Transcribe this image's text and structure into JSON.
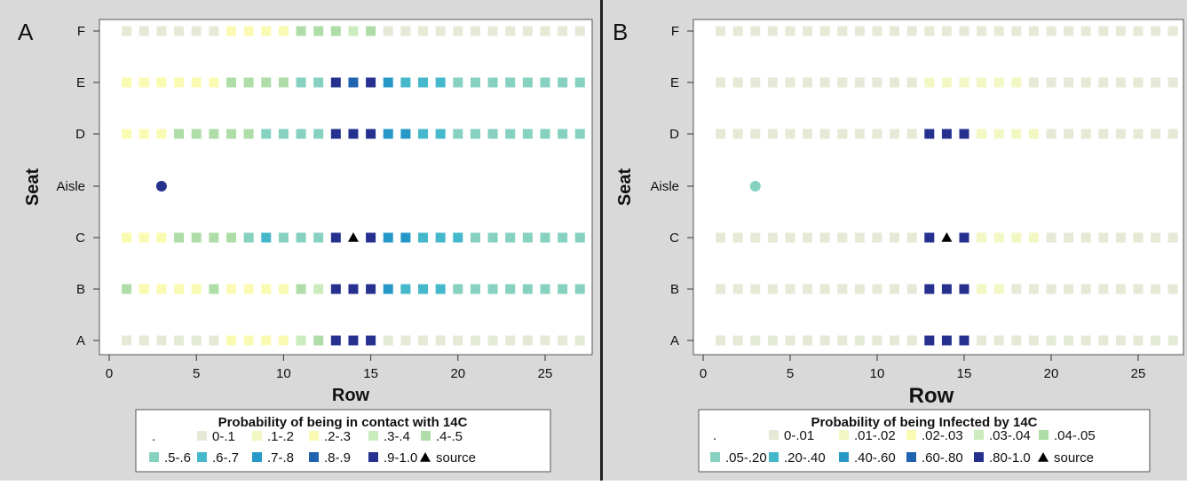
{
  "figure": {
    "colors": {
      "panel_bg": "#d9d9d9",
      "plot_bg": "#ffffff",
      "divider": "#222222",
      "text": "#111111",
      "source_marker": "#000000"
    }
  },
  "chart_data": [
    {
      "type": "heatmap",
      "panel_label": "A",
      "xlabel": "Row",
      "ylabel": "Seat",
      "xlim": [
        -0.5,
        27.5
      ],
      "x_ticks": [
        0,
        5,
        10,
        15,
        20,
        25
      ],
      "seat_rows": [
        "A",
        "B",
        "C",
        "Aisle",
        "D",
        "E",
        "F"
      ],
      "rows": [
        1,
        2,
        3,
        4,
        5,
        6,
        7,
        8,
        9,
        10,
        11,
        12,
        13,
        14,
        15,
        16,
        17,
        18,
        19,
        20,
        21,
        22,
        23,
        24,
        25,
        26,
        27
      ],
      "legend": {
        "title": "Probability of being in contact with 14C",
        "items": [
          {
            "label": ".",
            "color": ""
          },
          {
            "label": "0-.1",
            "color": "#e5ead6"
          },
          {
            "label": ".1-.2",
            "color": "#f2f7c4"
          },
          {
            "label": ".2-.3",
            "color": "#fbfab2"
          },
          {
            "label": ".3-.4",
            "color": "#cbedbe"
          },
          {
            "label": ".4-.5",
            "color": "#aedda7"
          },
          {
            "label": ".5-.6",
            "color": "#86d1c0"
          },
          {
            "label": ".6-.7",
            "color": "#45b8cc"
          },
          {
            "label": ".7-.8",
            "color": "#2698c8"
          },
          {
            "label": ".8-.9",
            "color": "#1f62ae"
          },
          {
            "label": ".9-1.0",
            "color": "#26318f"
          },
          {
            "label": "source",
            "color": "#000000",
            "marker": "triangle"
          }
        ]
      },
      "seats": {
        "A": [
          1,
          1,
          1,
          1,
          1,
          1,
          3,
          3,
          3,
          3,
          4,
          5,
          10,
          10,
          10,
          1,
          1,
          1,
          1,
          1,
          1,
          1,
          1,
          1,
          1,
          1,
          1
        ],
        "B": [
          5,
          3,
          3,
          3,
          3,
          5,
          3,
          3,
          3,
          3,
          5,
          4,
          10,
          10,
          10,
          8,
          7,
          7,
          7,
          6,
          6,
          6,
          6,
          6,
          6,
          6,
          6
        ],
        "C": [
          3,
          3,
          3,
          5,
          5,
          5,
          5,
          6,
          7,
          6,
          6,
          6,
          10,
          "source",
          10,
          8,
          8,
          7,
          7,
          7,
          6,
          6,
          6,
          6,
          6,
          6,
          6
        ],
        "D": [
          3,
          3,
          3,
          5,
          5,
          5,
          5,
          5,
          6,
          6,
          6,
          6,
          10,
          10,
          10,
          8,
          8,
          7,
          7,
          6,
          6,
          6,
          6,
          6,
          6,
          6,
          6
        ],
        "E": [
          3,
          3,
          3,
          3,
          3,
          3,
          5,
          5,
          5,
          5,
          6,
          6,
          10,
          9,
          10,
          8,
          7,
          7,
          7,
          6,
          6,
          6,
          6,
          6,
          6,
          6,
          6
        ],
        "F": [
          1,
          1,
          1,
          1,
          1,
          1,
          3,
          3,
          3,
          3,
          5,
          5,
          5,
          4,
          5,
          0,
          0,
          0,
          0,
          0,
          0,
          0,
          0,
          0,
          0,
          0,
          0
        ]
      },
      "aisle_points": [
        {
          "row": 3,
          "class": 10
        }
      ]
    },
    {
      "type": "heatmap",
      "panel_label": "B",
      "xlabel": "Row",
      "ylabel": "Seat",
      "xlim": [
        -0.5,
        27.5
      ],
      "x_ticks": [
        0,
        5,
        10,
        15,
        20,
        25
      ],
      "seat_rows": [
        "A",
        "B",
        "C",
        "Aisle",
        "D",
        "E",
        "F"
      ],
      "rows": [
        1,
        2,
        3,
        4,
        5,
        6,
        7,
        8,
        9,
        10,
        11,
        12,
        13,
        14,
        15,
        16,
        17,
        18,
        19,
        20,
        21,
        22,
        23,
        24,
        25,
        26,
        27
      ],
      "legend": {
        "title": "Probability of being Infected by 14C",
        "items": [
          {
            "label": ".",
            "color": ""
          },
          {
            "label": "0-.01",
            "color": "#e5ead6"
          },
          {
            "label": ".01-.02",
            "color": "#f2f7c4"
          },
          {
            "label": ".02-.03",
            "color": "#fbfab2"
          },
          {
            "label": ".03-.04",
            "color": "#cbedbe"
          },
          {
            "label": ".04-.05",
            "color": "#aedda7"
          },
          {
            "label": ".05-.20",
            "color": "#86d1c0"
          },
          {
            "label": ".20-.40",
            "color": "#45b8cc"
          },
          {
            "label": ".40-.60",
            "color": "#2698c8"
          },
          {
            "label": ".60-.80",
            "color": "#1f62ae"
          },
          {
            "label": ".80-1.0",
            "color": "#26318f"
          },
          {
            "label": "source",
            "color": "#000000",
            "marker": "triangle"
          }
        ]
      },
      "seats": {
        "A": [
          1,
          1,
          1,
          1,
          1,
          1,
          1,
          1,
          1,
          1,
          1,
          1,
          10,
          10,
          10,
          1,
          1,
          1,
          1,
          1,
          1,
          1,
          1,
          1,
          1,
          1,
          1
        ],
        "B": [
          1,
          1,
          1,
          1,
          1,
          1,
          1,
          1,
          1,
          1,
          1,
          1,
          10,
          10,
          10,
          2,
          2,
          1,
          1,
          1,
          1,
          1,
          1,
          1,
          1,
          1,
          1
        ],
        "C": [
          1,
          1,
          1,
          1,
          1,
          1,
          1,
          1,
          1,
          1,
          1,
          1,
          10,
          "source",
          10,
          2,
          2,
          2,
          2,
          1,
          1,
          1,
          1,
          1,
          1,
          1,
          1
        ],
        "D": [
          1,
          1,
          1,
          1,
          1,
          1,
          1,
          1,
          1,
          1,
          1,
          1,
          10,
          10,
          10,
          2,
          2,
          2,
          2,
          1,
          1,
          1,
          1,
          1,
          1,
          1,
          1
        ],
        "E": [
          1,
          1,
          1,
          1,
          1,
          1,
          1,
          1,
          1,
          1,
          1,
          1,
          2,
          2,
          2,
          2,
          2,
          2,
          1,
          1,
          1,
          1,
          1,
          1,
          1,
          1,
          1
        ],
        "F": [
          1,
          1,
          1,
          1,
          1,
          1,
          1,
          1,
          1,
          1,
          1,
          1,
          1,
          1,
          1,
          1,
          1,
          1,
          1,
          1,
          1,
          1,
          1,
          1,
          1,
          1,
          1
        ]
      },
      "aisle_points": [
        {
          "row": 3,
          "class": 6
        }
      ]
    }
  ]
}
